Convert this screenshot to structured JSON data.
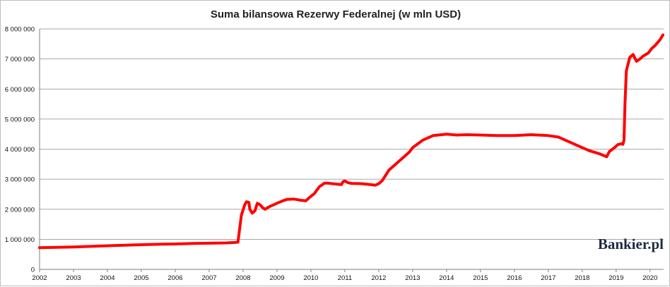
{
  "chart_data": {
    "type": "line",
    "title": "Suma bilansowa Rezerwy Federalnej (w mln USD)",
    "xlabel": "",
    "ylabel": "",
    "x_tick_labels": [
      "2002",
      "2003",
      "2004",
      "2005",
      "2006",
      "2007",
      "2008",
      "2009",
      "2010",
      "2011",
      "2012",
      "2013",
      "2014",
      "2015",
      "2016",
      "2017",
      "2018",
      "2019",
      "2020"
    ],
    "y_tick_labels": [
      "0",
      "1 000 000",
      "2 000 000",
      "3 000 000",
      "4 000 000",
      "5 000 000",
      "6 000 000",
      "7 000 000",
      "8 000 000"
    ],
    "xlim": [
      2002.0,
      2020.4
    ],
    "ylim": [
      0,
      8000000
    ],
    "grid": true,
    "legend": "none",
    "watermark": "Bankier.pl",
    "series": [
      {
        "color": "#ff0000",
        "x": [
          2002.0,
          2002.5,
          2003.0,
          2003.5,
          2004.0,
          2004.5,
          2005.0,
          2005.5,
          2006.0,
          2006.5,
          2007.0,
          2007.5,
          2007.75,
          2007.85,
          2007.95,
          2008.05,
          2008.1,
          2008.17,
          2008.2,
          2008.27,
          2008.35,
          2008.42,
          2008.5,
          2008.58,
          2008.65,
          2008.72,
          2008.8,
          2008.9,
          2009.0,
          2009.15,
          2009.3,
          2009.5,
          2009.7,
          2009.85,
          2010.0,
          2010.1,
          2010.25,
          2010.4,
          2010.5,
          2010.7,
          2010.9,
          2010.95,
          2011.0,
          2011.1,
          2011.2,
          2011.5,
          2011.75,
          2011.9,
          2012.0,
          2012.1,
          2012.3,
          2012.5,
          2012.7,
          2012.9,
          2013.0,
          2013.3,
          2013.6,
          2013.85,
          2014.0,
          2014.3,
          2014.6,
          2015.0,
          2015.5,
          2016.0,
          2016.5,
          2017.0,
          2017.3,
          2017.6,
          2017.9,
          2018.2,
          2018.5,
          2018.65,
          2018.72,
          2018.8,
          2018.95,
          2019.05,
          2019.15,
          2019.2,
          2019.23,
          2019.26,
          2019.3,
          2019.4,
          2019.5,
          2019.6,
          2019.7,
          2019.8,
          2019.95,
          2020.05,
          2020.15,
          2020.3,
          2020.38
        ],
        "values": [
          720000,
          735000,
          745000,
          765000,
          785000,
          805000,
          820000,
          835000,
          845000,
          860000,
          870000,
          880000,
          895000,
          905000,
          1800000,
          2150000,
          2250000,
          2230000,
          2000000,
          1870000,
          1950000,
          2200000,
          2150000,
          2050000,
          2000000,
          2050000,
          2100000,
          2150000,
          2200000,
          2270000,
          2330000,
          2340000,
          2300000,
          2280000,
          2430000,
          2520000,
          2750000,
          2870000,
          2870000,
          2840000,
          2820000,
          2920000,
          2940000,
          2880000,
          2860000,
          2850000,
          2820000,
          2800000,
          2850000,
          2950000,
          3300000,
          3500000,
          3700000,
          3900000,
          4050000,
          4300000,
          4450000,
          4480000,
          4500000,
          4470000,
          4480000,
          4470000,
          4450000,
          4450000,
          4480000,
          4450000,
          4400000,
          4250000,
          4100000,
          3950000,
          3850000,
          3780000,
          3750000,
          3920000,
          4050000,
          4150000,
          4180000,
          4160000,
          4300000,
          5500000,
          6600000,
          7050000,
          7150000,
          6920000,
          7000000,
          7100000,
          7200000,
          7350000,
          7450000,
          7650000,
          7800000
        ]
      }
    ]
  }
}
